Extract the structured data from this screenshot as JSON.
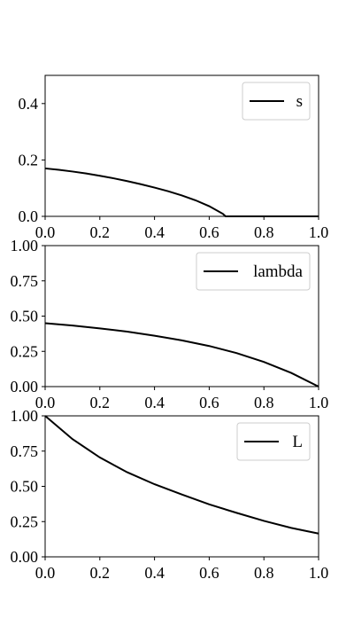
{
  "chart_data": [
    {
      "type": "line",
      "xlim": [
        0,
        1
      ],
      "ylim": [
        0,
        0.5
      ],
      "xticks": [
        0.0,
        0.2,
        0.4,
        0.6,
        0.8,
        1.0
      ],
      "xtick_labels": [
        "0.0",
        "0.2",
        "0.4",
        "0.6",
        "0.8",
        "1.0"
      ],
      "yticks": [
        0.0,
        0.2,
        0.4
      ],
      "ytick_labels": [
        "0.0",
        "0.2",
        "0.4"
      ],
      "legend_position": "top-right",
      "grid": false,
      "series": [
        {
          "name": "s",
          "color": "#000000",
          "x": [
            0.0,
            0.05,
            0.1,
            0.15,
            0.2,
            0.25,
            0.3,
            0.35,
            0.4,
            0.45,
            0.5,
            0.55,
            0.6,
            0.65,
            0.66,
            0.7,
            0.8,
            0.9,
            1.0
          ],
          "y": [
            0.17,
            0.165,
            0.159,
            0.152,
            0.144,
            0.135,
            0.125,
            0.114,
            0.102,
            0.089,
            0.074,
            0.057,
            0.036,
            0.009,
            0.0,
            0.0,
            0.0,
            0.0,
            0.0
          ]
        }
      ]
    },
    {
      "type": "line",
      "xlim": [
        0,
        1
      ],
      "ylim": [
        0,
        1
      ],
      "xticks": [
        0.0,
        0.2,
        0.4,
        0.6,
        0.8,
        1.0
      ],
      "xtick_labels": [
        "0.0",
        "0.2",
        "0.4",
        "0.6",
        "0.8",
        "1.0"
      ],
      "yticks": [
        0.0,
        0.25,
        0.5,
        0.75,
        1.0
      ],
      "ytick_labels": [
        "0.00",
        "0.25",
        "0.50",
        "0.75",
        "1.00"
      ],
      "legend_position": "top-right",
      "grid": false,
      "series": [
        {
          "name": "lambda",
          "color": "#000000",
          "x": [
            0.0,
            0.1,
            0.2,
            0.3,
            0.4,
            0.5,
            0.6,
            0.7,
            0.8,
            0.9,
            1.0
          ],
          "y": [
            0.45,
            0.433,
            0.413,
            0.39,
            0.361,
            0.328,
            0.288,
            0.238,
            0.175,
            0.097,
            0.0
          ]
        }
      ]
    },
    {
      "type": "line",
      "xlim": [
        0,
        1
      ],
      "ylim": [
        0,
        1
      ],
      "xticks": [
        0.0,
        0.2,
        0.4,
        0.6,
        0.8,
        1.0
      ],
      "xtick_labels": [
        "0.0",
        "0.2",
        "0.4",
        "0.6",
        "0.8",
        "1.0"
      ],
      "yticks": [
        0.0,
        0.25,
        0.5,
        0.75,
        1.0
      ],
      "ytick_labels": [
        "0.00",
        "0.25",
        "0.50",
        "0.75",
        "1.00"
      ],
      "legend_position": "top-right",
      "grid": false,
      "series": [
        {
          "name": "L",
          "color": "#000000",
          "x": [
            0.0,
            0.1,
            0.2,
            0.3,
            0.4,
            0.5,
            0.6,
            0.7,
            0.8,
            0.9,
            1.0
          ],
          "y": [
            1.0,
            0.835,
            0.705,
            0.6,
            0.515,
            0.442,
            0.372,
            0.312,
            0.255,
            0.205,
            0.165
          ]
        }
      ]
    }
  ]
}
